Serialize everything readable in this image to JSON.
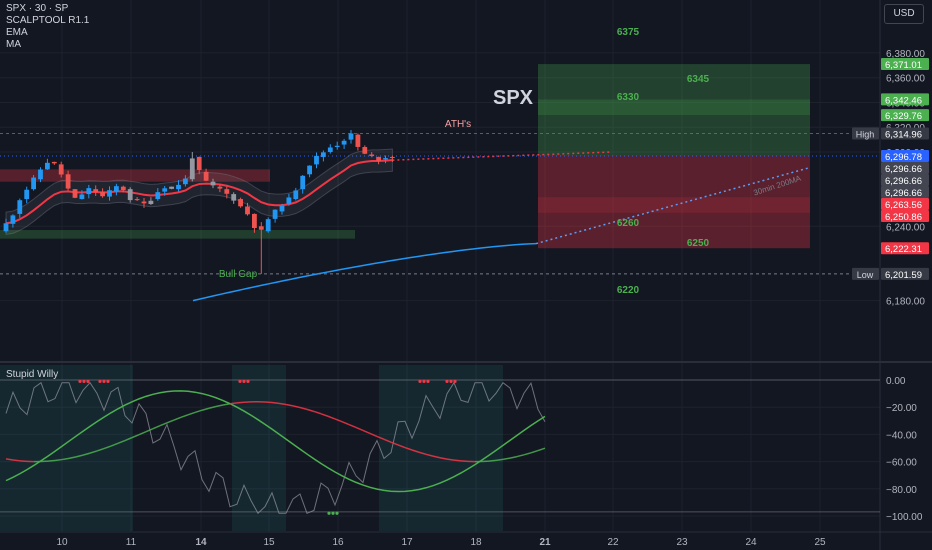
{
  "legend": {
    "symbol": "SPX · 30 · SP",
    "indicators": [
      "SCALPTOOL R1.1",
      "EMA",
      "MA"
    ]
  },
  "currency": "USD",
  "oscillator_title": "Stupid Willy",
  "colors": {
    "background": "#131722",
    "grid": "#1e222d",
    "up": "#2196f3",
    "down": "#ef5350",
    "neutral": "#9598a1",
    "ema": "#f23645",
    "ma": "#2196f3",
    "target": "#4caf50",
    "stop": "#f23645"
  },
  "chart_data": [
    {
      "type": "candlestick",
      "title": "SPX",
      "price_axis": {
        "ticks": [
          "6,380.00",
          "6,360.00",
          "6,340.00",
          "6,320.00",
          "6,300.00",
          "6,240.00",
          "6,180.00"
        ],
        "tick_values": [
          6380,
          6360,
          6340,
          6320,
          6300,
          6240,
          6180
        ],
        "range": [
          6171,
          6386
        ]
      },
      "time_axis": {
        "labels": [
          "10",
          "11",
          "14",
          "15",
          "16",
          "17",
          "18",
          "21",
          "22",
          "23",
          "24",
          "25"
        ]
      },
      "price_tags": [
        {
          "label": "6,371.01",
          "value": 6371.01,
          "color": "#4caf50"
        },
        {
          "label": "6,342.46",
          "value": 6342.46,
          "color": "#4caf50"
        },
        {
          "label": "6,329.76",
          "value": 6329.76,
          "color": "#4caf50"
        },
        {
          "label": "6,314.96",
          "value": 6314.96,
          "color": "#363a45",
          "name": "High"
        },
        {
          "label": "6,296.78",
          "value": 6296.78,
          "color": "#2962ff"
        },
        {
          "label": "6,296.66",
          "value": 6296.66,
          "color": "#434651"
        },
        {
          "label": "6,296.66",
          "value": 6296.66,
          "color": "#434651"
        },
        {
          "label": "6,296.66",
          "value": 6296.66,
          "color": "#434651"
        },
        {
          "label": "6,263.56",
          "value": 6263.56,
          "color": "#f23645"
        },
        {
          "label": "6,250.86",
          "value": 6250.86,
          "color": "#f23645"
        },
        {
          "label": "6,222.31",
          "value": 6222.31,
          "color": "#f23645"
        },
        {
          "label": "6,201.59",
          "value": 6201.59,
          "color": "#363a45",
          "name": "Low"
        }
      ],
      "annotations": {
        "ath": "ATH's",
        "bull_gap": "Bull Gap",
        "ma_label": "30min 200MA",
        "levels": [
          "6375",
          "6345",
          "6330",
          "6260",
          "6250",
          "6220"
        ]
      }
    },
    {
      "type": "line",
      "title": "Stupid Willy",
      "y_axis": {
        "ticks": [
          "0.00",
          "−20.00",
          "−40.00",
          "−60.00",
          "−80.00",
          "−100.00"
        ],
        "tick_values": [
          0,
          -20,
          -40,
          -60,
          -80,
          -100
        ],
        "range": [
          -105,
          5
        ]
      }
    }
  ]
}
